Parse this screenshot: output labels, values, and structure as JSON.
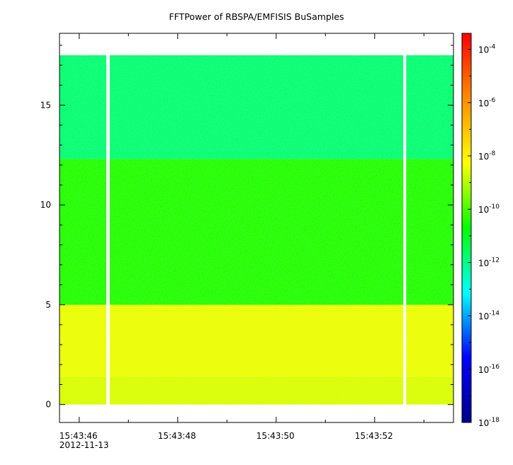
{
  "chart_data": {
    "type": "heatmap",
    "title": "FFTPower of RBSPA/EMFISIS  BuSamples",
    "xlabel": "",
    "ylabel": "",
    "x_tick_labels": [
      "15:43:46",
      "15:43:48",
      "15:43:50",
      "15:43:52"
    ],
    "x_tick_seconds": [
      46,
      48,
      50,
      52
    ],
    "x_date_label": "2012-11-13",
    "x_range_seconds": [
      45.6,
      53.6
    ],
    "y_tick_labels": [
      "0",
      "5",
      "10",
      "15"
    ],
    "y_ticks": [
      0,
      5,
      10,
      15
    ],
    "ylim": [
      -0.9,
      18.6
    ],
    "y_data_range": [
      0,
      17.5
    ],
    "gaps_seconds": [
      [
        46.55,
        46.62
      ],
      [
        52.58,
        52.64
      ]
    ],
    "bands": [
      {
        "y_from": 0,
        "y_to": 1.4,
        "log10_power": -8.6
      },
      {
        "y_from": 1.4,
        "y_to": 5.0,
        "log10_power": -8.4
      },
      {
        "y_from": 5.0,
        "y_to": 12.3,
        "log10_power": -10.4
      },
      {
        "y_from": 12.3,
        "y_to": 17.5,
        "log10_power": -11.8
      }
    ],
    "colorbar": {
      "scale": "log",
      "range_exponent": [
        -18,
        -3.4
      ],
      "tick_exponents": [
        -4,
        -6,
        -8,
        -10,
        -12,
        -14,
        -16,
        -18
      ],
      "tick_base": "10",
      "tick_labels": [
        "-4",
        "-6",
        "-8",
        "-10",
        "-12",
        "-14",
        "-16",
        "-18"
      ],
      "colors": [
        "#00008b",
        "#0000ff",
        "#00ffff",
        "#00ff00",
        "#ffff00",
        "#ff8c00",
        "#ff0000"
      ]
    },
    "grid": false
  }
}
